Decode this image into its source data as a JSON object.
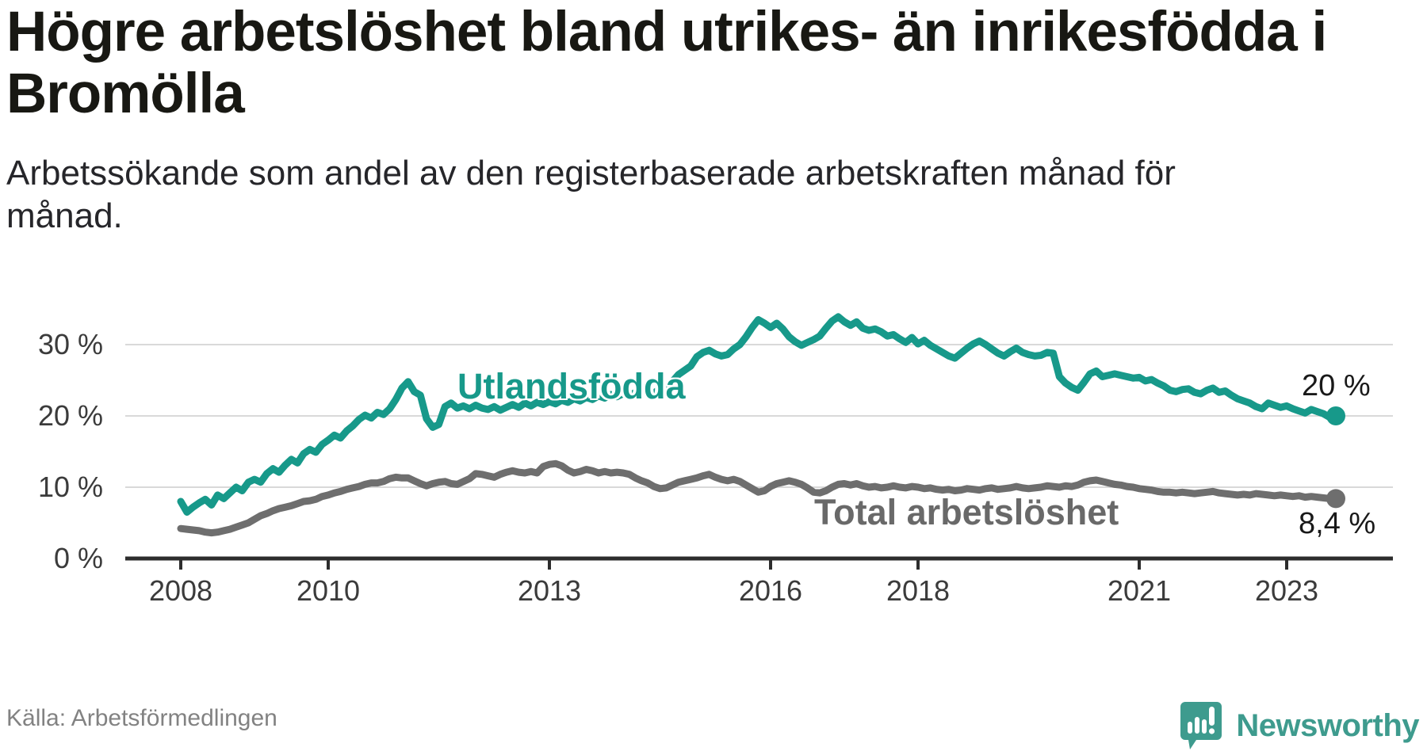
{
  "header": {
    "title": "Högre arbetslöshet bland utrikes- än inrikesfödda i Bromölla",
    "title_line1": "Högre arbetslöshet bland utrikes- än inrikesfödda i",
    "title_line2": "Bromölla",
    "subtitle": "Arbetssökande som andel av den registerbaserade arbetskraften månad för månad.",
    "subtitle_line1": "Arbetssökande som andel av den registerbaserade arbetskraften månad för",
    "subtitle_line2": "månad."
  },
  "footer": {
    "source": "Källa: Arbetsförmedlingen",
    "brand_name": "Newsworthy",
    "brand_icon": "bar-chart-speech-bubble-icon"
  },
  "colors": {
    "teal_line": "#17998a",
    "gray_line": "#6e6e6e",
    "gray_label": "#696969",
    "gridline": "#d9d9d9",
    "axis": "#2d2d2d",
    "brand_teal": "#3e9b8e",
    "annotation": "#191919"
  },
  "chart_data": {
    "type": "line",
    "title": "Högre arbetslöshet bland utrikes- än inrikesfödda i Bromölla",
    "subtitle": "Arbetssökande som andel av den registerbaserade arbetskraften månad för månad.",
    "source": "Källa: Arbetsförmedlingen",
    "xlabel": "",
    "ylabel": "",
    "grid": "horizontal",
    "legend": "inline-labels",
    "x_unit": "year-month",
    "x_start_year": 2008,
    "x_step_months": 1,
    "xlim": [
      2007.25,
      2024.45
    ],
    "ylim": [
      0,
      40
    ],
    "y_ticks": [
      0,
      10,
      20,
      30
    ],
    "y_tick_labels": [
      "0 %",
      "10 %",
      "20 %",
      "30 %"
    ],
    "x_ticks": [
      2008,
      2010,
      2013,
      2016,
      2018,
      2021,
      2023
    ],
    "x_tick_labels": [
      "2008",
      "2010",
      "2013",
      "2016",
      "2018",
      "2021",
      "2023"
    ],
    "series": [
      {
        "name": "Utlandsfödda",
        "color": "#17998a",
        "end_label": "20 %",
        "end_value": 20,
        "values": [
          8.0,
          6.5,
          7.2,
          7.8,
          8.3,
          7.5,
          8.9,
          8.4,
          9.2,
          10.0,
          9.5,
          10.7,
          11.1,
          10.7,
          11.9,
          12.6,
          12.1,
          13.1,
          13.9,
          13.4,
          14.7,
          15.3,
          14.9,
          16.0,
          16.6,
          17.3,
          16.9,
          17.9,
          18.6,
          19.5,
          20.1,
          19.7,
          20.5,
          20.2,
          21.0,
          22.3,
          23.9,
          24.8,
          23.4,
          22.9,
          19.6,
          18.4,
          18.8,
          21.3,
          21.8,
          21.1,
          21.4,
          21.0,
          21.5,
          21.1,
          20.9,
          21.3,
          20.8,
          21.2,
          21.6,
          21.2,
          21.8,
          21.4,
          21.9,
          21.6,
          22.0,
          21.7,
          22.2,
          21.9,
          22.4,
          22.1,
          22.6,
          22.3,
          22.8,
          22.5,
          23.0,
          22.7,
          23.1,
          22.8,
          23.3,
          23.0,
          23.5,
          23.2,
          23.8,
          24.3,
          24.8,
          25.8,
          26.4,
          27.0,
          28.3,
          28.9,
          29.2,
          28.7,
          28.4,
          28.6,
          29.4,
          30.0,
          31.1,
          32.4,
          33.5,
          33.0,
          32.4,
          33.0,
          32.2,
          31.1,
          30.4,
          29.9,
          30.3,
          30.7,
          31.2,
          32.3,
          33.3,
          33.9,
          33.2,
          32.7,
          33.2,
          32.3,
          32.0,
          32.2,
          31.8,
          31.2,
          31.4,
          30.8,
          30.3,
          31.0,
          30.1,
          30.6,
          29.9,
          29.4,
          28.9,
          28.4,
          28.1,
          28.8,
          29.5,
          30.1,
          30.5,
          30.0,
          29.4,
          28.8,
          28.4,
          29.0,
          29.5,
          28.9,
          28.6,
          28.4,
          28.5,
          28.9,
          28.8,
          25.5,
          24.6,
          24.0,
          23.6,
          24.7,
          25.9,
          26.3,
          25.5,
          25.7,
          25.9,
          25.7,
          25.5,
          25.3,
          25.4,
          24.9,
          25.1,
          24.6,
          24.2,
          23.6,
          23.4,
          23.7,
          23.8,
          23.3,
          23.1,
          23.6,
          23.9,
          23.3,
          23.5,
          22.9,
          22.4,
          22.1,
          21.8,
          21.3,
          21.0,
          21.8,
          21.5,
          21.2,
          21.4,
          21.0,
          20.7,
          20.4,
          20.9,
          20.6,
          20.3,
          19.8,
          20.0
        ]
      },
      {
        "name": "Total arbetslöshet",
        "color": "#6e6e6e",
        "end_label": "8,4 %",
        "end_value": 8.4,
        "values": [
          4.2,
          4.1,
          4.0,
          3.9,
          3.7,
          3.6,
          3.7,
          3.9,
          4.1,
          4.4,
          4.7,
          5.0,
          5.5,
          6.0,
          6.3,
          6.7,
          7.0,
          7.2,
          7.4,
          7.7,
          8.0,
          8.1,
          8.3,
          8.7,
          8.9,
          9.2,
          9.4,
          9.7,
          9.9,
          10.1,
          10.4,
          10.6,
          10.6,
          10.8,
          11.2,
          11.4,
          11.3,
          11.3,
          10.9,
          10.5,
          10.2,
          10.5,
          10.7,
          10.8,
          10.5,
          10.4,
          10.8,
          11.2,
          11.9,
          11.8,
          11.6,
          11.4,
          11.8,
          12.1,
          12.3,
          12.1,
          12.0,
          12.2,
          12.0,
          12.9,
          13.2,
          13.3,
          13.0,
          12.4,
          12.0,
          12.2,
          12.5,
          12.3,
          12.0,
          12.2,
          12.0,
          12.1,
          12.0,
          11.8,
          11.3,
          10.9,
          10.6,
          10.1,
          9.8,
          9.9,
          10.3,
          10.7,
          10.9,
          11.1,
          11.3,
          11.6,
          11.8,
          11.4,
          11.1,
          10.9,
          11.1,
          10.8,
          10.3,
          9.8,
          9.3,
          9.5,
          10.1,
          10.5,
          10.7,
          10.9,
          10.7,
          10.4,
          9.9,
          9.3,
          9.2,
          9.5,
          10.0,
          10.4,
          10.5,
          10.3,
          10.5,
          10.2,
          10.0,
          10.1,
          9.9,
          10.0,
          10.2,
          10.0,
          9.9,
          10.1,
          10.0,
          9.8,
          9.9,
          9.7,
          9.6,
          9.7,
          9.5,
          9.6,
          9.8,
          9.7,
          9.6,
          9.8,
          9.9,
          9.7,
          9.8,
          9.9,
          10.1,
          9.9,
          9.8,
          9.9,
          10.0,
          10.2,
          10.1,
          10.0,
          10.2,
          10.1,
          10.3,
          10.7,
          10.9,
          11.0,
          10.8,
          10.6,
          10.4,
          10.3,
          10.1,
          10.0,
          9.8,
          9.7,
          9.6,
          9.4,
          9.3,
          9.3,
          9.2,
          9.3,
          9.2,
          9.1,
          9.2,
          9.3,
          9.4,
          9.2,
          9.1,
          9.0,
          8.9,
          9.0,
          8.9,
          9.1,
          9.0,
          8.9,
          8.8,
          8.9,
          8.8,
          8.7,
          8.8,
          8.6,
          8.7,
          8.6,
          8.5,
          8.4,
          8.4
        ]
      }
    ]
  }
}
